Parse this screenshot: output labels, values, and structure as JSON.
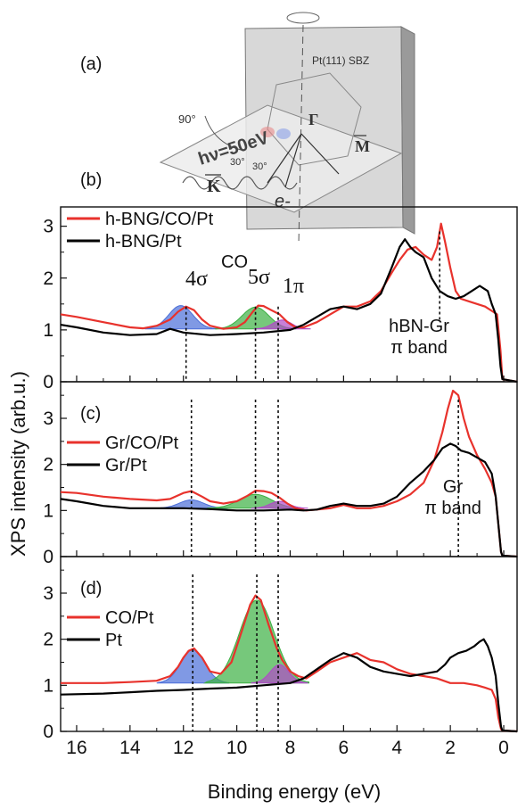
{
  "chart_data": {
    "type": "line",
    "xlabel": "Binding energy (eV)",
    "ylabel": "XPS intensity (arb.u.)",
    "xlim": [
      16.6,
      -0.5
    ],
    "x_reversed": true,
    "x_ticks": [
      "16",
      "14",
      "12",
      "10",
      "8",
      "6",
      "4",
      "2",
      "0"
    ],
    "y_ticks": [
      "0",
      "1",
      "2",
      "3"
    ],
    "inset": {
      "label": "(a)",
      "photon": "hν=50eV",
      "angle": "90°",
      "sbz": "Pt(111) SBZ",
      "gamma": "Γ",
      "m": "M",
      "k": "K",
      "angle1": "30°",
      "angle2": "30°",
      "electron": "e-"
    },
    "panels": [
      {
        "label": "(b)",
        "ylim": [
          0,
          3.2
        ],
        "legend": [
          "h-BNG/CO/Pt",
          "h-BNG/Pt"
        ],
        "annotations": {
          "co": "CO",
          "peak1": "4σ",
          "peak2": "5σ",
          "peak3": "1π",
          "band1": "hBN-Gr",
          "band2": "π band"
        },
        "series": [
          {
            "name": "h-BNG/CO/Pt",
            "color": "#e8322c",
            "x": [
              16.6,
              16,
              15,
              14,
              13.5,
              13,
              12.5,
              12.2,
              11.9,
              11.6,
              11.3,
              11,
              10.5,
              10,
              9.7,
              9.4,
              9.2,
              9,
              8.7,
              8.4,
              8.1,
              7.8,
              7.5,
              7,
              6.5,
              6,
              5.5,
              5,
              4.6,
              4.2,
              3.9,
              3.6,
              3.3,
              3.0,
              2.7,
              2.5,
              2.35,
              2.2,
              2.0,
              1.8,
              1.6,
              1.3,
              1.0,
              0.7,
              0.4,
              0.25,
              0.12,
              0.05,
              -0.5
            ],
            "y": [
              1.3,
              1.25,
              1.15,
              1.05,
              1.03,
              1.08,
              1.2,
              1.35,
              1.45,
              1.38,
              1.2,
              1.08,
              1.02,
              1.05,
              1.15,
              1.35,
              1.47,
              1.46,
              1.38,
              1.3,
              1.15,
              1.05,
              1.05,
              1.15,
              1.3,
              1.45,
              1.45,
              1.55,
              1.75,
              2.1,
              2.35,
              2.55,
              2.6,
              2.45,
              2.35,
              2.6,
              3.05,
              2.7,
              2.2,
              1.75,
              1.6,
              1.55,
              1.5,
              1.45,
              1.35,
              1.3,
              0.6,
              0.05,
              0.0
            ]
          },
          {
            "name": "h-BNG/Pt",
            "color": "#000000",
            "x": [
              16.6,
              16,
              15,
              14,
              13,
              12.5,
              12,
              11,
              10,
              9,
              8,
              7.5,
              7,
              6.5,
              6,
              5.5,
              5,
              4.6,
              4.2,
              3.9,
              3.7,
              3.5,
              3.3,
              3.0,
              2.7,
              2.4,
              2.1,
              1.8,
              1.5,
              1.2,
              0.9,
              0.75,
              0.6,
              0.45,
              0.3,
              0.2,
              0.12,
              0.05,
              -0.5
            ],
            "y": [
              1.1,
              1.05,
              0.95,
              0.9,
              0.92,
              1.02,
              0.95,
              0.9,
              0.92,
              0.95,
              1.0,
              1.1,
              1.25,
              1.4,
              1.45,
              1.4,
              1.5,
              1.7,
              2.2,
              2.6,
              2.75,
              2.6,
              2.5,
              2.4,
              2.0,
              1.75,
              1.65,
              1.6,
              1.65,
              1.75,
              1.85,
              1.8,
              1.75,
              1.5,
              1.3,
              0.8,
              0.3,
              0.05,
              0.0
            ]
          }
        ],
        "peaks": [
          {
            "center": 12.1,
            "height": 0.45,
            "width": 0.45,
            "color": "#4a6dd8"
          },
          {
            "center": 9.3,
            "height": 0.42,
            "width": 0.5,
            "color": "#3cb043"
          },
          {
            "center": 8.3,
            "height": 0.17,
            "width": 0.35,
            "color": "#b04ac8"
          }
        ]
      },
      {
        "label": "(c)",
        "ylim": [
          0,
          3.6
        ],
        "legend": [
          "Gr/CO/Pt",
          "Gr/Pt"
        ],
        "annotations": {
          "band1": "Gr",
          "band2": "π band"
        },
        "series": [
          {
            "name": "Gr/CO/Pt",
            "color": "#e8322c",
            "x": [
              16.6,
              16,
              15,
              14,
              13,
              12.5,
              12,
              11.7,
              11.3,
              11,
              10.5,
              10,
              9.6,
              9.3,
              9.0,
              8.7,
              8.4,
              8.1,
              7.8,
              7.4,
              7,
              6.5,
              6,
              5.5,
              5,
              4.5,
              4,
              3.5,
              3.0,
              2.6,
              2.3,
              2.1,
              1.9,
              1.7,
              1.5,
              1.3,
              1.0,
              0.7,
              0.45,
              0.3,
              0.2,
              0.1,
              0.05,
              -0.5
            ],
            "y": [
              1.4,
              1.38,
              1.3,
              1.25,
              1.22,
              1.25,
              1.38,
              1.42,
              1.3,
              1.2,
              1.15,
              1.2,
              1.32,
              1.43,
              1.42,
              1.38,
              1.28,
              1.15,
              1.05,
              1.0,
              1.02,
              1.05,
              1.12,
              1.05,
              1.05,
              1.1,
              1.2,
              1.35,
              1.6,
              2.1,
              2.7,
              3.2,
              3.6,
              3.5,
              3.0,
              2.6,
              2.2,
              1.9,
              1.6,
              1.3,
              0.7,
              0.1,
              0.02,
              0.0
            ]
          },
          {
            "name": "Gr/Pt",
            "color": "#000000",
            "x": [
              16.6,
              16,
              15,
              14,
              13,
              12,
              11,
              10,
              9,
              8,
              7.5,
              7,
              6.5,
              6,
              5.5,
              5,
              4.5,
              4,
              3.5,
              3.0,
              2.6,
              2.3,
              2.0,
              1.8,
              1.6,
              1.3,
              1.0,
              0.7,
              0.45,
              0.3,
              0.2,
              0.1,
              0.05,
              -0.5
            ],
            "y": [
              1.25,
              1.2,
              1.1,
              1.05,
              1.05,
              1.05,
              1.03,
              1.0,
              1.0,
              1.02,
              1.0,
              1.02,
              1.1,
              1.15,
              1.1,
              1.1,
              1.15,
              1.3,
              1.6,
              1.85,
              2.1,
              2.35,
              2.45,
              2.4,
              2.3,
              2.25,
              2.15,
              2.05,
              1.8,
              1.3,
              0.7,
              0.1,
              0.02,
              0.0
            ]
          }
        ],
        "peaks": [
          {
            "center": 11.7,
            "height": 0.18,
            "width": 0.45,
            "color": "#4a6dd8"
          },
          {
            "center": 9.3,
            "height": 0.3,
            "width": 0.6,
            "color": "#3cb043"
          },
          {
            "center": 8.4,
            "height": 0.15,
            "width": 0.35,
            "color": "#b04ac8"
          }
        ]
      },
      {
        "label": "(d)",
        "ylim": [
          0,
          3.6
        ],
        "legend": [
          "CO/Pt",
          "Pt"
        ],
        "series": [
          {
            "name": "CO/Pt",
            "color": "#e8322c",
            "x": [
              16.6,
              15,
              14,
              13,
              12.5,
              12.2,
              12,
              11.8,
              11.6,
              11.3,
              11,
              10.6,
              10.2,
              9.8,
              9.5,
              9.3,
              9.1,
              8.8,
              8.5,
              8.3,
              8.0,
              7.7,
              7.4,
              7,
              6.5,
              6,
              5.5,
              5,
              4.5,
              4,
              3.5,
              3,
              2.5,
              2,
              1.5,
              1.2,
              1.0,
              0.7,
              0.45,
              0.3,
              0.2,
              0.1,
              0.05,
              -0.5
            ],
            "y": [
              1.05,
              1.05,
              1.07,
              1.1,
              1.2,
              1.4,
              1.6,
              1.75,
              1.8,
              1.6,
              1.3,
              1.25,
              1.5,
              2.2,
              2.75,
              2.95,
              2.85,
              2.3,
              1.8,
              1.55,
              1.3,
              1.2,
              1.15,
              1.3,
              1.5,
              1.6,
              1.7,
              1.55,
              1.5,
              1.35,
              1.25,
              1.2,
              1.15,
              1.05,
              1.05,
              1.02,
              1.0,
              0.95,
              0.9,
              0.7,
              0.3,
              0.05,
              0.02,
              0.0
            ]
          },
          {
            "name": "Pt",
            "color": "#000000",
            "x": [
              16.6,
              15,
              14,
              13,
              12,
              11,
              10,
              9,
              8,
              7.5,
              7,
              6.5,
              6,
              5.5,
              5,
              4.5,
              4,
              3.5,
              3,
              2.5,
              2.2,
              2.0,
              1.7,
              1.4,
              1.1,
              0.9,
              0.75,
              0.6,
              0.45,
              0.3,
              0.2,
              0.1,
              0.05,
              -0.5
            ],
            "y": [
              0.8,
              0.82,
              0.85,
              0.88,
              0.9,
              0.93,
              0.95,
              1.0,
              1.05,
              1.15,
              1.35,
              1.55,
              1.7,
              1.6,
              1.4,
              1.3,
              1.25,
              1.2,
              1.25,
              1.3,
              1.45,
              1.6,
              1.7,
              1.75,
              1.85,
              1.95,
              2.0,
              1.85,
              1.6,
              1.2,
              0.6,
              0.1,
              0.02,
              0.0
            ]
          }
        ],
        "peaks": [
          {
            "center": 11.65,
            "height": 0.72,
            "width": 0.45,
            "color": "#4a6dd8"
          },
          {
            "center": 9.25,
            "height": 1.8,
            "width": 0.65,
            "color": "#3cb043"
          },
          {
            "center": 8.4,
            "height": 0.4,
            "width": 0.35,
            "color": "#b04ac8"
          }
        ]
      }
    ],
    "dotted_markers": {
      "b": [
        11.9,
        9.3,
        8.45,
        2.4
      ],
      "c": [
        11.7,
        9.3,
        8.45,
        1.7
      ],
      "d": [
        11.65,
        9.25,
        8.45
      ]
    }
  }
}
